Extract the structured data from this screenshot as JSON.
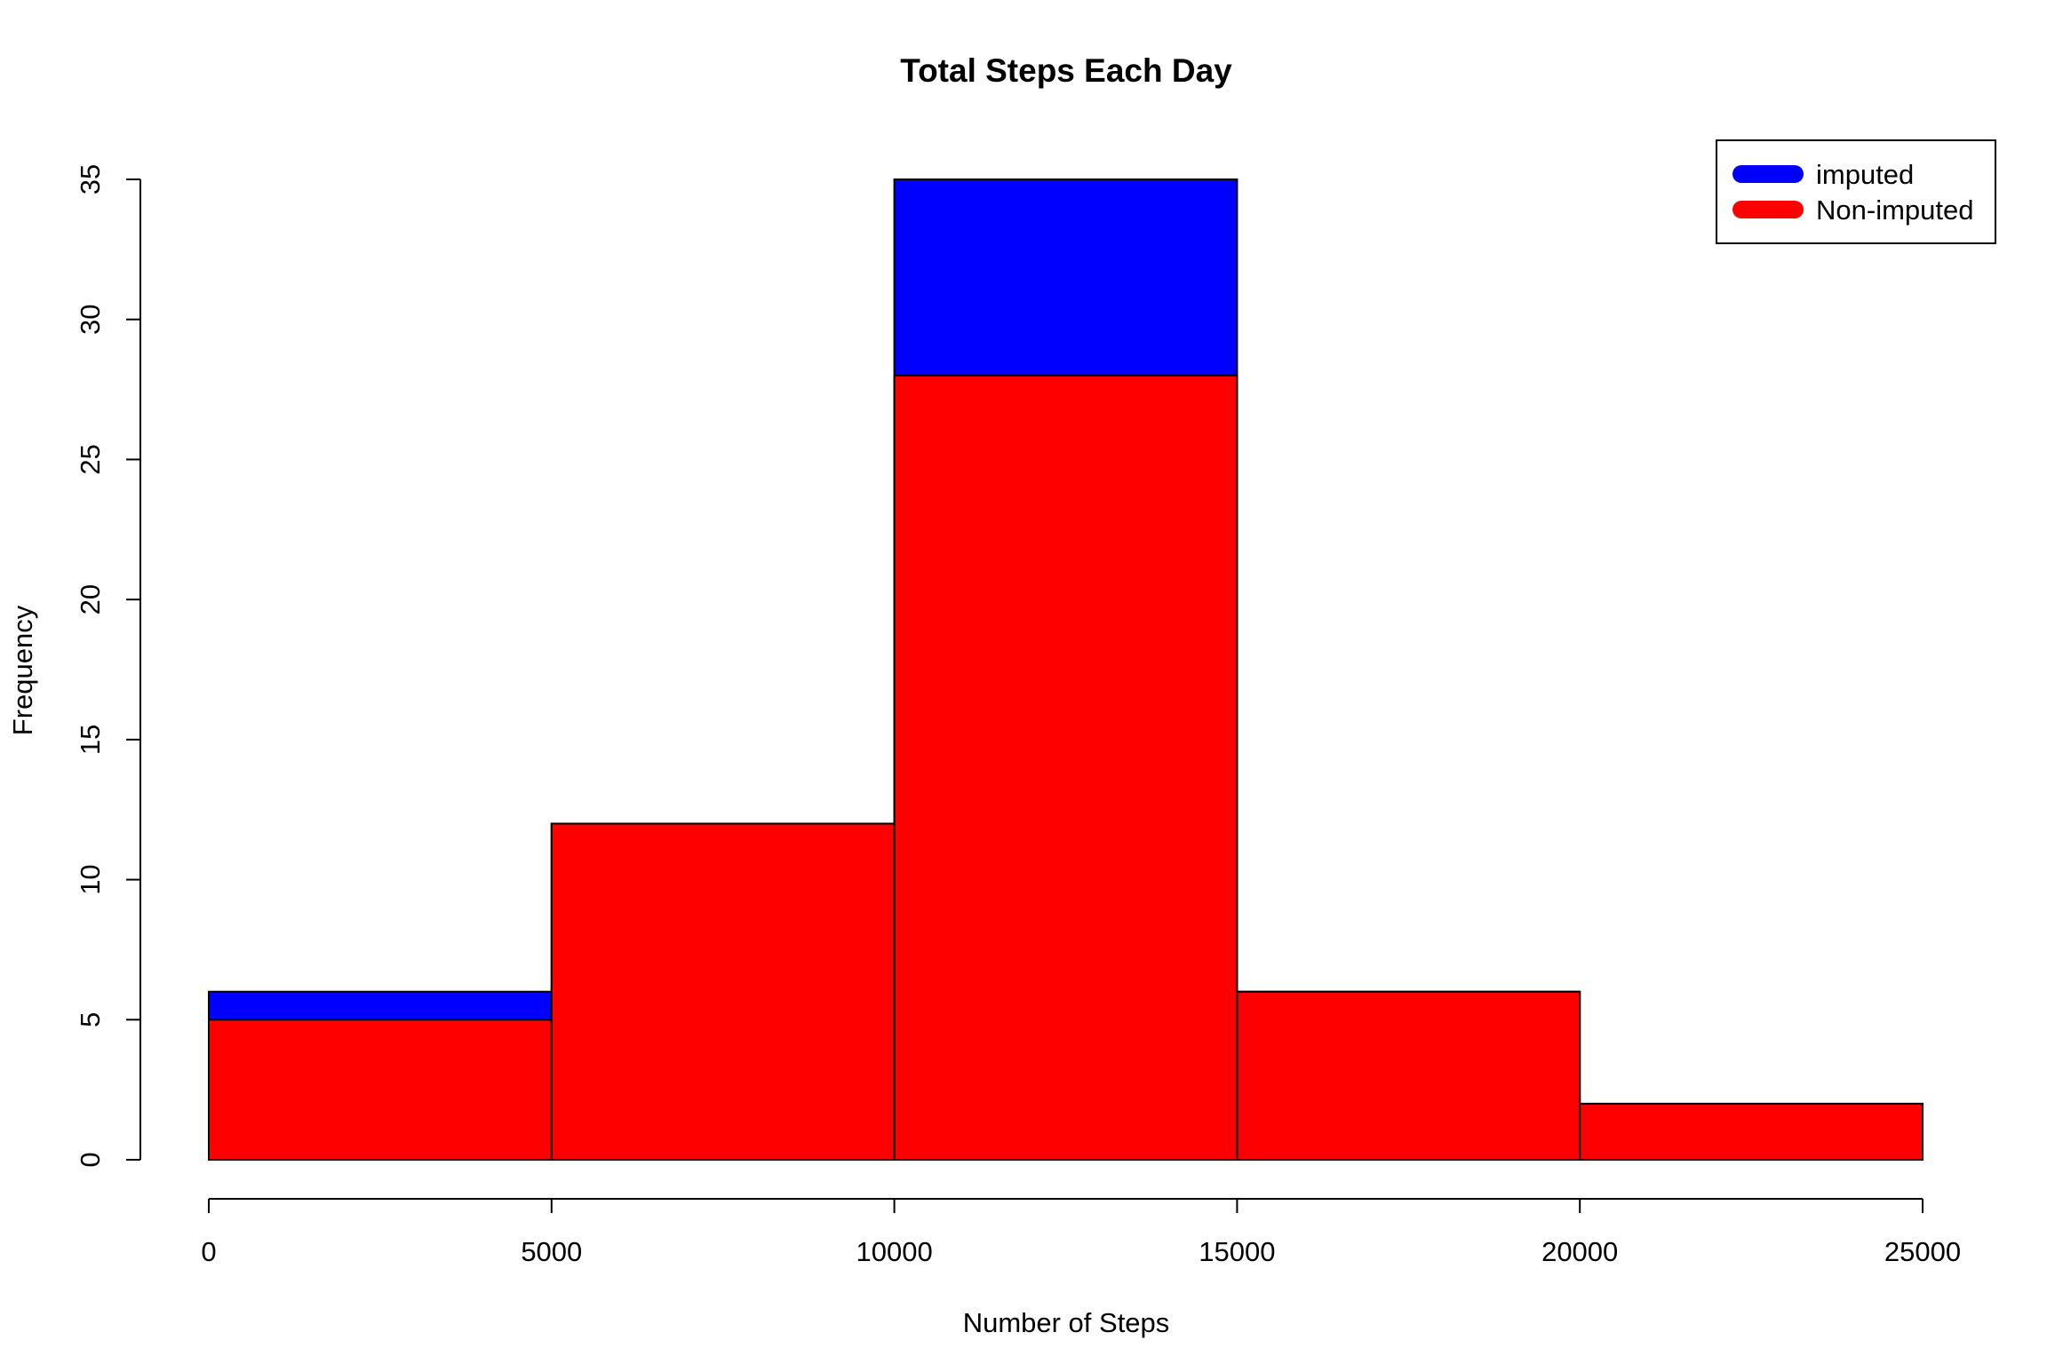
{
  "chart_data": {
    "type": "bar",
    "title": "Total Steps Each Day",
    "xlabel": "Number of Steps",
    "ylabel": "Frequency",
    "bin_edges": [
      0,
      5000,
      10000,
      15000,
      20000,
      25000
    ],
    "xlim": [
      0,
      25000
    ],
    "ylim": [
      0,
      35
    ],
    "x_ticks": [
      0,
      5000,
      10000,
      15000,
      20000,
      25000
    ],
    "y_ticks": [
      0,
      5,
      10,
      15,
      20,
      25,
      30,
      35
    ],
    "grid": false,
    "legend_position": "top-right",
    "series": [
      {
        "name": "imputed",
        "color": "#0000ff",
        "values": [
          6,
          12,
          35,
          6,
          2
        ]
      },
      {
        "name": "Non-imputed",
        "color": "#ff0000",
        "values": [
          5,
          12,
          28,
          6,
          2
        ]
      }
    ]
  }
}
